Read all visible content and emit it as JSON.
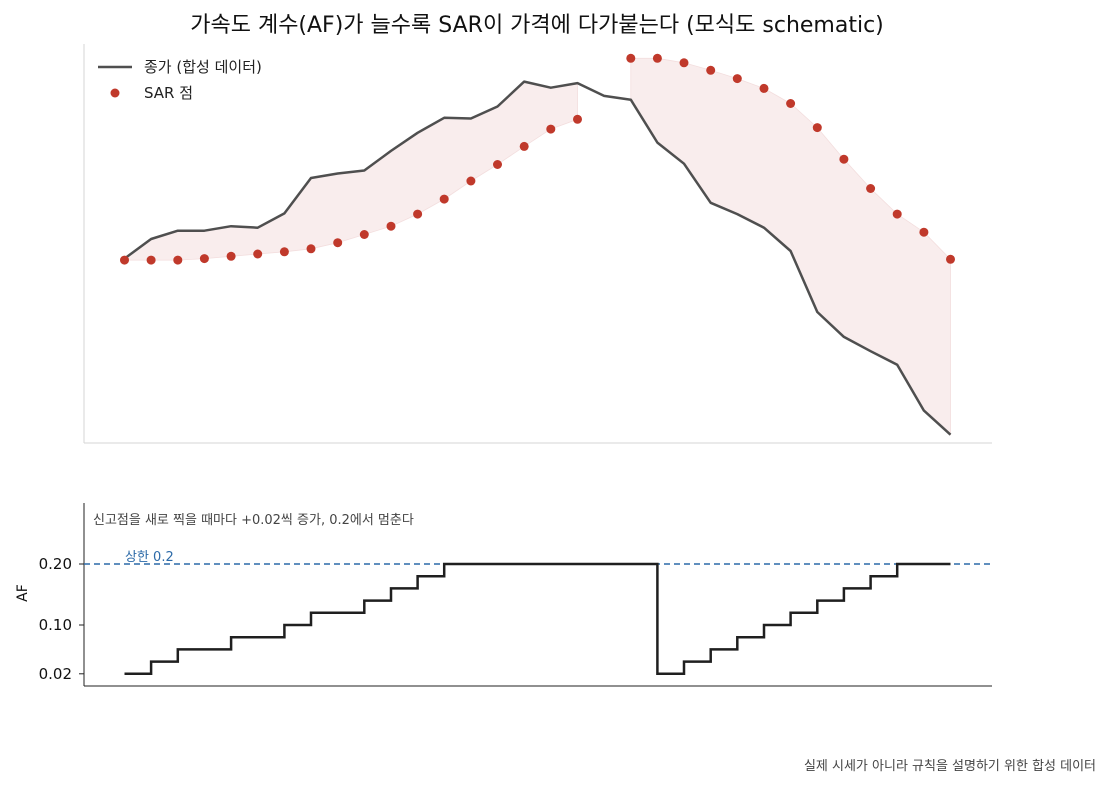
{
  "title": "가속도 계수(AF)가 늘수록 SAR이 가격에 다가붙는다 (모식도 schematic)",
  "footer": "실제 시세가 아니라 규칙을 설명하기 위한 합성 데이터",
  "colors": {
    "price": "#4f4f4f",
    "sar": "#c0392b",
    "fill": "#f9eded",
    "af": "#1f1f1f",
    "cap": "#2c6aa8",
    "axis": "#222222",
    "top_axis": "#d6d6d6"
  },
  "chart_data": [
    {
      "type": "line",
      "title": "가속도 계수(AF)가 늘수록 SAR이 가격에 다가붙는다 (모식도 schematic)",
      "x": [
        0,
        1,
        2,
        3,
        4,
        5,
        6,
        7,
        8,
        9,
        10,
        11,
        12,
        13,
        14,
        15,
        16,
        17,
        18,
        19,
        20,
        21,
        22,
        23,
        24,
        25,
        26,
        27,
        28,
        29,
        30,
        31
      ],
      "series": [
        {
          "name": "종가 (합성 데이터)",
          "kind": "line",
          "values": [
            100.0,
            102.6,
            103.7,
            103.7,
            104.3,
            104.1,
            106.0,
            110.7,
            111.3,
            111.7,
            114.3,
            116.7,
            118.7,
            118.6,
            120.2,
            123.5,
            122.7,
            123.3,
            121.6,
            121.1,
            115.4,
            112.6,
            107.4,
            105.9,
            104.1,
            101.0,
            92.9,
            89.6,
            87.7,
            85.9,
            79.8,
            76.6
          ]
        },
        {
          "name": "SAR 점",
          "kind": "scatter",
          "values": [
            99.8,
            99.8,
            99.8,
            100.0,
            100.3,
            100.6,
            100.9,
            101.3,
            102.1,
            103.2,
            104.3,
            105.9,
            107.9,
            110.3,
            112.5,
            114.9,
            117.2,
            118.5,
            126.6,
            126.6,
            126.0,
            125.0,
            123.9,
            122.6,
            120.6,
            117.4,
            113.2,
            109.3,
            105.9,
            103.5,
            99.9
          ],
          "x": [
            0,
            1,
            2,
            3,
            4,
            5,
            6,
            7,
            8,
            9,
            10,
            11,
            12,
            13,
            14,
            15,
            16,
            17,
            19,
            20,
            21,
            22,
            23,
            24,
            25,
            26,
            27,
            28,
            29,
            30,
            31
          ]
        }
      ],
      "legend": "top-left",
      "ylim": [
        75.5,
        128.5
      ]
    },
    {
      "type": "line",
      "ylabel": "AF",
      "x": [
        0,
        1,
        2,
        3,
        4,
        5,
        6,
        7,
        8,
        9,
        10,
        11,
        12,
        13,
        14,
        15,
        16,
        17,
        18,
        19,
        20,
        21,
        22,
        23,
        24,
        25,
        26,
        27,
        28,
        29,
        30,
        31
      ],
      "series": [
        {
          "name": "AF",
          "values": [
            0.02,
            0.04,
            0.06,
            0.06,
            0.08,
            0.08,
            0.1,
            0.12,
            0.12,
            0.14,
            0.16,
            0.18,
            0.2,
            0.2,
            0.2,
            0.2,
            0.2,
            0.2,
            0.2,
            0.2,
            0.02,
            0.04,
            0.06,
            0.08,
            0.1,
            0.12,
            0.14,
            0.16,
            0.18,
            0.2,
            0.2,
            0.2
          ]
        }
      ],
      "step": "post",
      "yticks": [
        0.02,
        0.1,
        0.2
      ],
      "ytick_labels": [
        "0.02",
        "0.10",
        "0.20"
      ],
      "ylim": [
        0.0,
        0.3
      ],
      "cap": 0.2,
      "cap_label": "상한 0.2",
      "annotation": "신고점을 새로 찍을 때마다 +0.02씩 증가, 0.2에서 멈춘다"
    }
  ]
}
